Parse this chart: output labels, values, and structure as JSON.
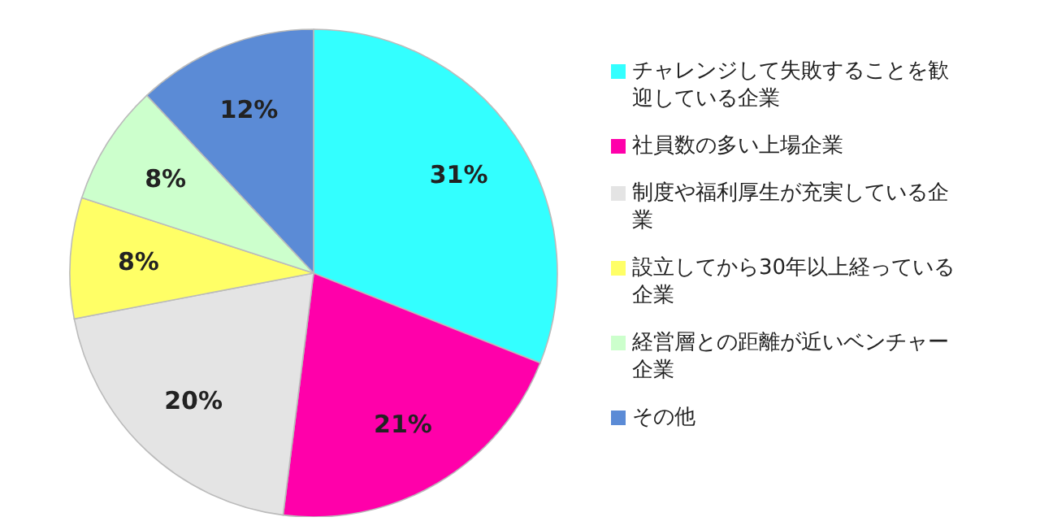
{
  "chart_data": {
    "type": "pie",
    "categories": [
      "チャレンジして失敗することを歓迎している企業",
      "社員数の多い上場企業",
      "制度や福利厚生が充実している企業",
      "設立してから30年以上経っている企業",
      "経営層との距離が近いベンチャー企業",
      "その他"
    ],
    "values": [
      31,
      21,
      20,
      8,
      8,
      12
    ],
    "value_labels": [
      "31%",
      "21%",
      "20%",
      "8%",
      "8%",
      "12%"
    ],
    "colors": [
      "#33ffff",
      "#ff00aa",
      "#e4e4e4",
      "#ffff66",
      "#ccffcc",
      "#5b8bd6"
    ],
    "legend": "right"
  }
}
